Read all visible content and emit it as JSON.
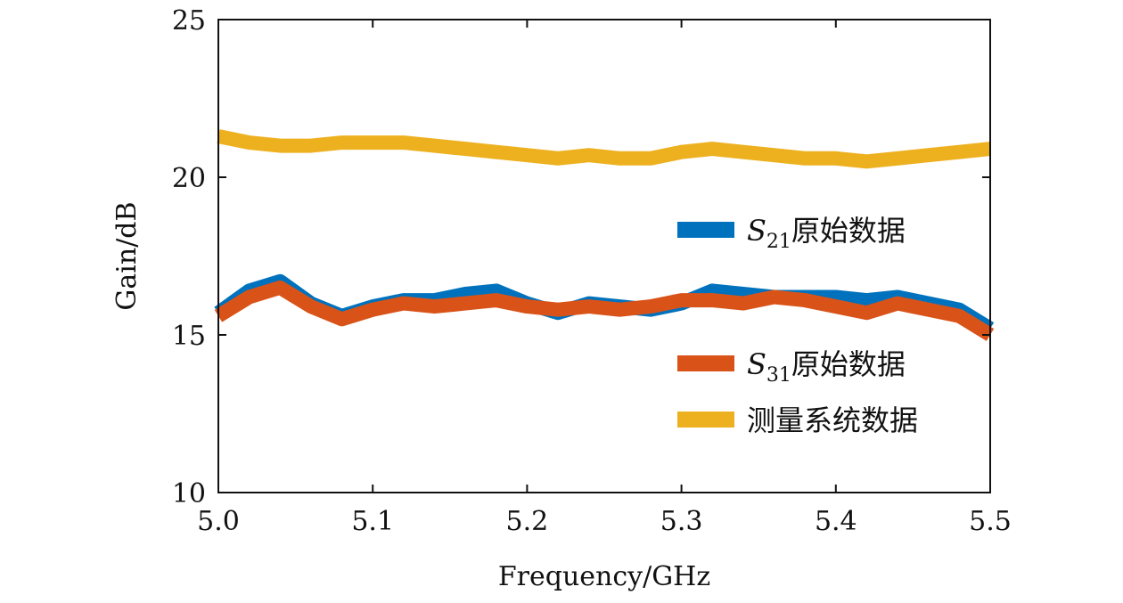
{
  "chart_data": {
    "type": "line",
    "title": "",
    "xlabel": "Frequency/GHz",
    "ylabel": "Gain/dB",
    "xlim": [
      5.0,
      5.5
    ],
    "ylim": [
      10,
      25
    ],
    "grid": false,
    "legend_position": "right",
    "x_ticks": [
      5.0,
      5.1,
      5.2,
      5.3,
      5.4,
      5.5
    ],
    "x_tick_labels": [
      "5.0",
      "5.1",
      "5.2",
      "5.3",
      "5.4",
      "5.5"
    ],
    "y_ticks": [
      10,
      15,
      20,
      25
    ],
    "y_tick_labels": [
      "10",
      "15",
      "20",
      "25"
    ],
    "x": [
      5.0,
      5.02,
      5.04,
      5.06,
      5.08,
      5.1,
      5.12,
      5.14,
      5.16,
      5.18,
      5.2,
      5.22,
      5.24,
      5.26,
      5.28,
      5.3,
      5.32,
      5.34,
      5.36,
      5.38,
      5.4,
      5.42,
      5.44,
      5.46,
      5.48,
      5.5
    ],
    "series": [
      {
        "name": "S21原始数据",
        "legend_main": "S",
        "legend_sub": "21",
        "legend_rest": "原始数据",
        "color": "#0072BD",
        "values": [
          15.7,
          16.4,
          16.7,
          16.0,
          15.6,
          15.9,
          16.1,
          16.1,
          16.3,
          16.4,
          16.0,
          15.7,
          16.0,
          15.9,
          15.8,
          16.0,
          16.4,
          16.3,
          16.2,
          16.2,
          16.2,
          16.1,
          16.2,
          16.0,
          15.8,
          15.2
        ]
      },
      {
        "name": "S31原始数据",
        "legend_main": "S",
        "legend_sub": "31",
        "legend_rest": "原始数据",
        "color": "#D95319",
        "values": [
          15.6,
          16.2,
          16.5,
          15.9,
          15.5,
          15.8,
          16.0,
          15.9,
          16.0,
          16.1,
          15.9,
          15.8,
          15.9,
          15.8,
          15.9,
          16.1,
          16.1,
          16.0,
          16.2,
          16.1,
          15.9,
          15.7,
          16.0,
          15.8,
          15.6,
          15.0
        ]
      },
      {
        "name": "测量系统数据",
        "legend_main": "测量系统数据",
        "legend_sub": "",
        "legend_rest": "",
        "color": "#EDB120",
        "values": [
          21.3,
          21.1,
          21.0,
          21.0,
          21.1,
          21.1,
          21.1,
          21.0,
          20.9,
          20.8,
          20.7,
          20.6,
          20.7,
          20.6,
          20.6,
          20.8,
          20.9,
          20.8,
          20.7,
          20.6,
          20.6,
          20.5,
          20.6,
          20.7,
          20.8,
          20.9
        ]
      }
    ]
  }
}
